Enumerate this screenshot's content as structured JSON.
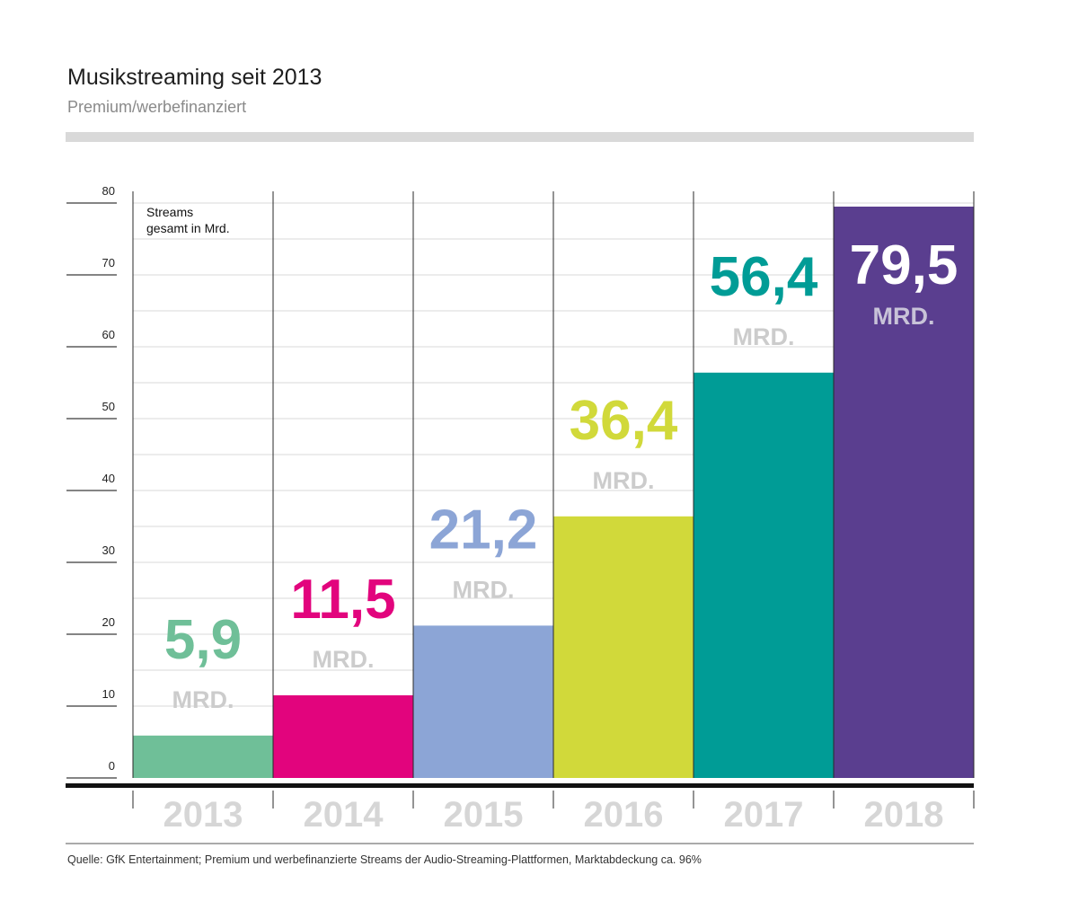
{
  "chart_data": {
    "type": "bar",
    "title": "Musikstreaming seit 2013",
    "subtitle": "Premium/werbefinanziert",
    "ylabel_lines": [
      "Streams",
      "gesamt in Mrd."
    ],
    "categories": [
      "2013",
      "2014",
      "2015",
      "2016",
      "2017",
      "2018"
    ],
    "values": [
      5.9,
      11.5,
      21.2,
      36.4,
      56.4,
      79.5
    ],
    "value_labels": [
      "5,9",
      "11,5",
      "21,2",
      "36,4",
      "56,4",
      "79,5"
    ],
    "unit_label": "MRD.",
    "ylim": [
      0,
      80
    ],
    "yticks": [
      0,
      10,
      20,
      30,
      40,
      50,
      60,
      70,
      80
    ],
    "colors": [
      "#6fbf98",
      "#e2047d",
      "#8ca5d6",
      "#d1d93a",
      "#009c96",
      "#5a3e8f"
    ],
    "grid": true
  },
  "source": "Quelle: GfK Entertainment; Premium und werbefinanzierte Streams der Audio-Streaming-Plattformen, Marktabdeckung ca. 96%"
}
